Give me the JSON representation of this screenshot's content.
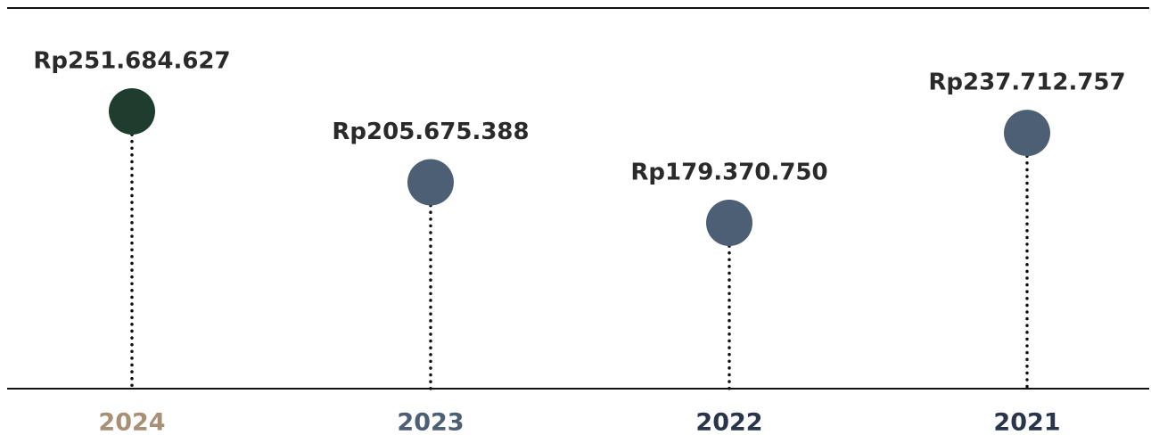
{
  "chart_data": {
    "type": "lollipop",
    "categories": [
      "2024",
      "2023",
      "2022",
      "2021"
    ],
    "values": [
      251684627,
      205675388,
      179370750,
      237712757
    ],
    "value_labels": [
      "Rp251.684.627",
      "Rp205.675.388",
      "Rp179.370.750",
      "Rp237.712.757"
    ],
    "colors": [
      "#1f3d2f",
      "#4c5f74",
      "#4c5f74",
      "#4c5f74"
    ],
    "category_label_colors": [
      "#a89077",
      "#4c5f74",
      "#28354a",
      "#28354a"
    ]
  }
}
